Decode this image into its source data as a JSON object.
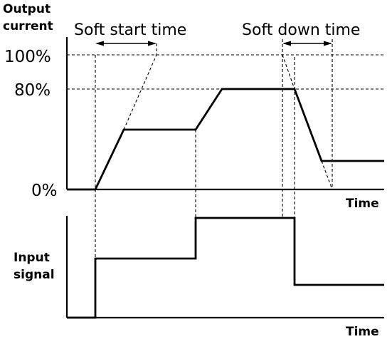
{
  "labels": {
    "output_current": [
      "Output",
      "current"
    ],
    "input_signal": [
      "Input",
      "signal"
    ],
    "time_top": "Time",
    "time_bottom": "Time",
    "soft_start_time": "Soft start time",
    "soft_down_time": "Soft down time",
    "pct_100": "100%",
    "pct_80": "80%",
    "pct_0": "0%"
  },
  "colors": {
    "line": "#000000",
    "background": "#ffffff"
  }
}
